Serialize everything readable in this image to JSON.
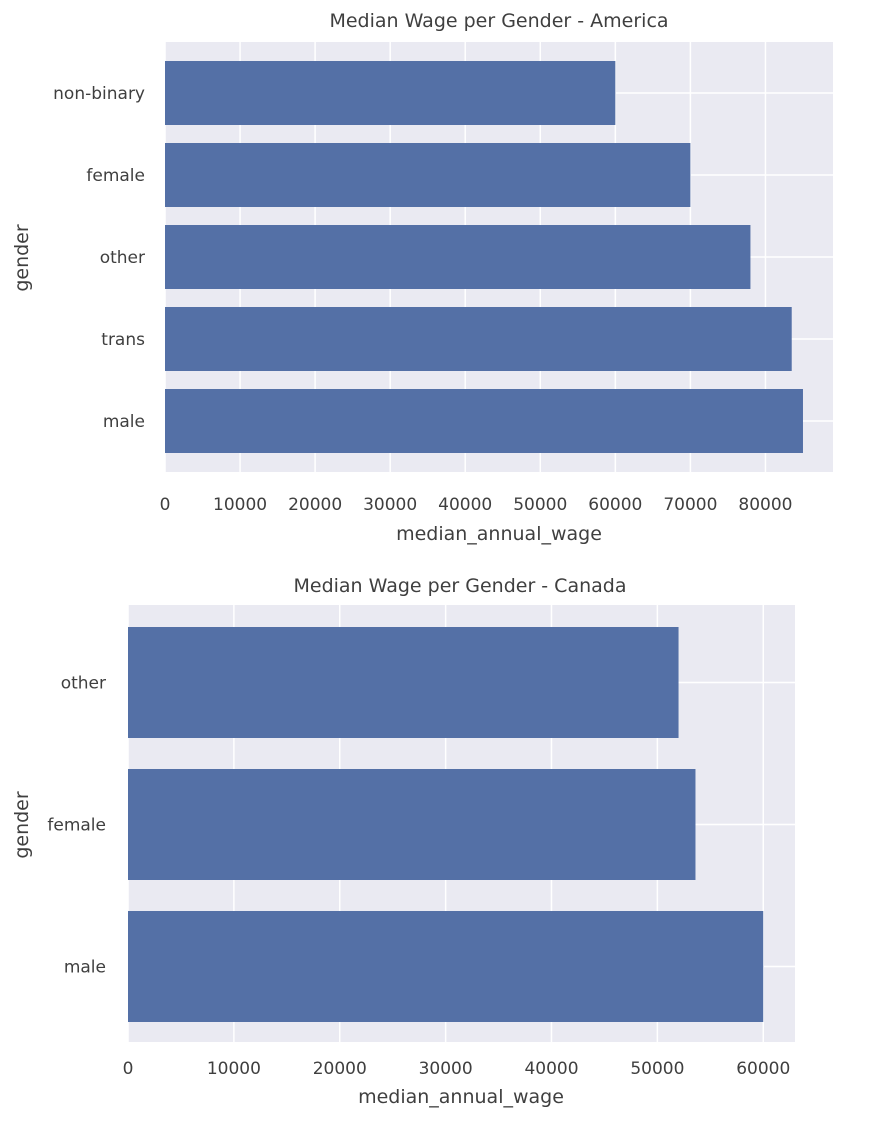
{
  "chart_data": [
    {
      "type": "bar",
      "orientation": "horizontal",
      "title": "Median Wage per Gender - America",
      "xlabel": "median_annual_wage",
      "ylabel": "gender",
      "categories": [
        "non-binary",
        "female",
        "other",
        "trans",
        "male"
      ],
      "values": [
        60000,
        70000,
        78000,
        83500,
        85000
      ],
      "xticks": [
        0,
        10000,
        20000,
        30000,
        40000,
        50000,
        60000,
        70000,
        80000
      ],
      "xlim": [
        0,
        89000
      ],
      "grid": true,
      "bar_color": "#5470a6",
      "background_color": "#eaeaf2"
    },
    {
      "type": "bar",
      "orientation": "horizontal",
      "title": "Median Wage per Gender - Canada",
      "xlabel": "median_annual_wage",
      "ylabel": "gender",
      "categories": [
        "other",
        "female",
        "male"
      ],
      "values": [
        52000,
        53600,
        60000
      ],
      "xticks": [
        0,
        10000,
        20000,
        30000,
        40000,
        50000,
        60000
      ],
      "xlim": [
        0,
        63000
      ],
      "grid": true,
      "bar_color": "#5470a6",
      "background_color": "#eaeaf2"
    }
  ]
}
